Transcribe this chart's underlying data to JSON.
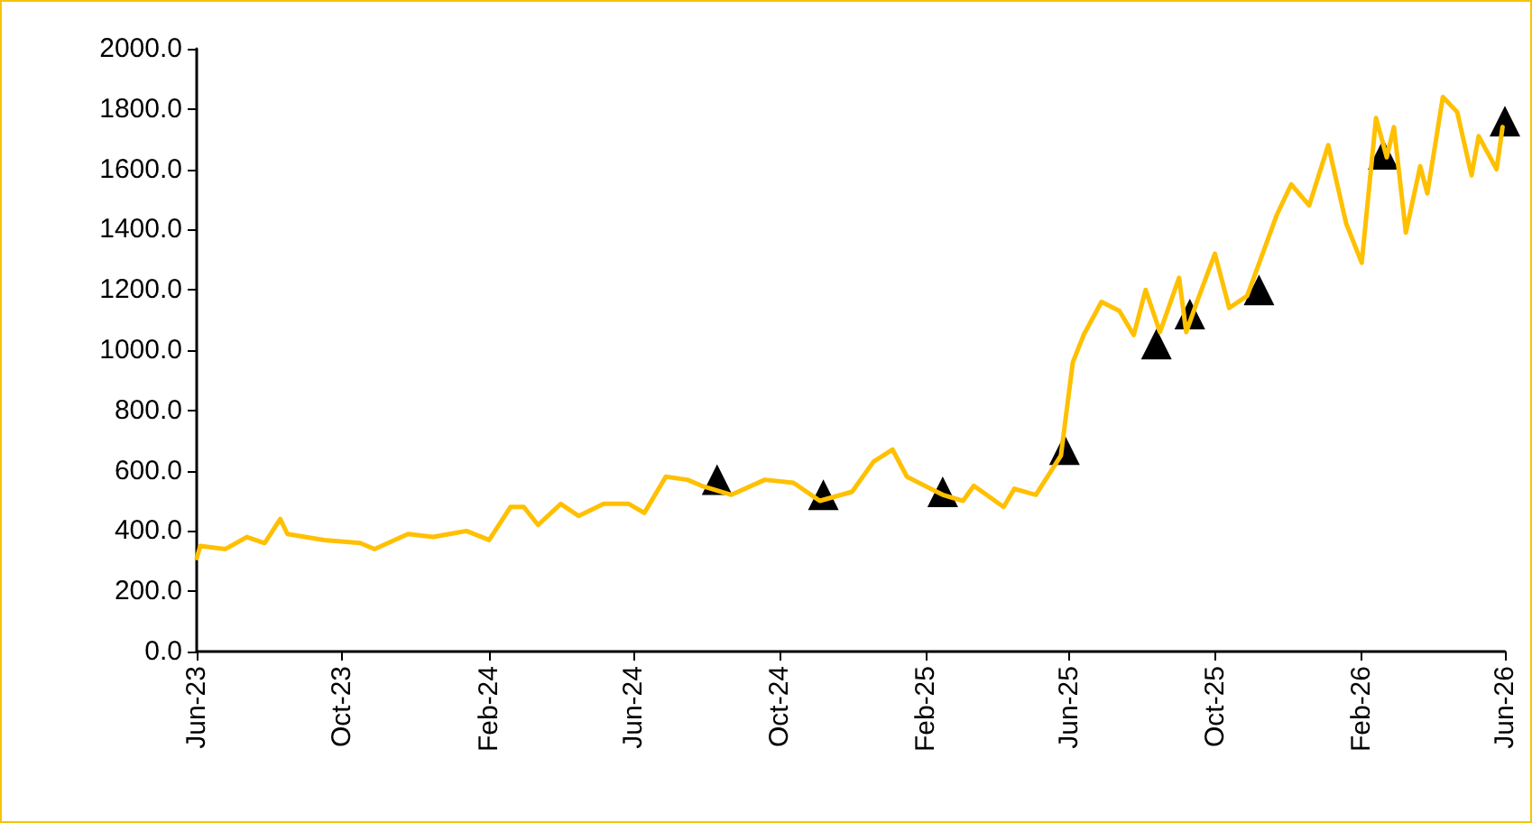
{
  "chart_data": {
    "type": "line",
    "xlim": [
      "2023-06-01",
      "2026-06-01"
    ],
    "xticks": [
      {
        "value": "2023-06-01",
        "label": "Jun-23"
      },
      {
        "value": "2023-10-01",
        "label": "Oct-23"
      },
      {
        "value": "2024-02-01",
        "label": "Feb-24"
      },
      {
        "value": "2024-06-01",
        "label": "Jun-24"
      },
      {
        "value": "2024-10-01",
        "label": "Oct-24"
      },
      {
        "value": "2025-02-01",
        "label": "Feb-25"
      },
      {
        "value": "2025-06-01",
        "label": "Jun-25"
      },
      {
        "value": "2025-10-01",
        "label": "Oct-25"
      },
      {
        "value": "2026-02-01",
        "label": "Feb-26"
      },
      {
        "value": "2026-06-01",
        "label": "Jun-26"
      }
    ],
    "ylim": [
      0,
      2000
    ],
    "yticks": [
      {
        "value": 0,
        "label": "0.0"
      },
      {
        "value": 200,
        "label": "200.0"
      },
      {
        "value": 400,
        "label": "400.0"
      },
      {
        "value": 600,
        "label": "600.0"
      },
      {
        "value": 800,
        "label": "800.0"
      },
      {
        "value": 1000,
        "label": "1000.0"
      },
      {
        "value": 1200,
        "label": "1200.0"
      },
      {
        "value": 1400,
        "label": "1400.0"
      },
      {
        "value": 1600,
        "label": "1600.0"
      },
      {
        "value": 1800,
        "label": "1800.0"
      },
      {
        "value": 2000,
        "label": "2000.0"
      }
    ],
    "grid": false,
    "series": [
      {
        "color": "#ffc000",
        "marker": "none",
        "line_style": "solid",
        "x": [
          "2023-06-01",
          "2023-06-04",
          "2023-06-25",
          "2023-07-13",
          "2023-07-28",
          "2023-08-10",
          "2023-08-16",
          "2023-09-16",
          "2023-10-16",
          "2023-10-28",
          "2023-11-25",
          "2023-12-16",
          "2024-01-13",
          "2024-02-01",
          "2024-02-19",
          "2024-03-01",
          "2024-03-13",
          "2024-04-01",
          "2024-04-16",
          "2024-05-07",
          "2024-05-28",
          "2024-06-10",
          "2024-06-28",
          "2024-07-16",
          "2024-07-28",
          "2024-08-22",
          "2024-09-19",
          "2024-10-13",
          "2024-11-04",
          "2024-12-01",
          "2024-12-19",
          "2025-01-04",
          "2025-01-16",
          "2025-02-15",
          "2025-03-04",
          "2025-03-13",
          "2025-04-07",
          "2025-04-16",
          "2025-05-04",
          "2025-05-25",
          "2025-06-04",
          "2025-06-13",
          "2025-06-28",
          "2025-07-13",
          "2025-07-25",
          "2025-08-04",
          "2025-08-16",
          "2025-09-01",
          "2025-09-07",
          "2025-09-16",
          "2025-10-01",
          "2025-10-13",
          "2025-10-28",
          "2025-11-10",
          "2025-11-22",
          "2025-12-04",
          "2025-12-19",
          "2026-01-04",
          "2026-01-19",
          "2026-02-01",
          "2026-02-13",
          "2026-02-22",
          "2026-02-28",
          "2026-03-10",
          "2026-03-22",
          "2026-03-28",
          "2026-04-10",
          "2026-04-22",
          "2026-05-04",
          "2026-05-10",
          "2026-05-25",
          "2026-05-30"
        ],
        "values": [
          310,
          350,
          340,
          380,
          360,
          440,
          390,
          370,
          360,
          340,
          390,
          380,
          400,
          370,
          480,
          480,
          420,
          490,
          450,
          490,
          490,
          460,
          580,
          570,
          550,
          520,
          570,
          560,
          500,
          530,
          630,
          670,
          580,
          520,
          500,
          550,
          480,
          540,
          520,
          650,
          960,
          1050,
          1160,
          1130,
          1050,
          1200,
          1060,
          1240,
          1060,
          1160,
          1320,
          1140,
          1180,
          1320,
          1450,
          1550,
          1480,
          1680,
          1420,
          1290,
          1770,
          1640,
          1740,
          1390,
          1610,
          1520,
          1840,
          1790,
          1580,
          1710,
          1600,
          1740
        ]
      },
      {
        "type": "scatter",
        "color": "#000000",
        "marker": "triangle",
        "x": [
          "2024-08-10",
          "2024-11-07",
          "2025-02-15",
          "2025-05-28",
          "2025-08-13",
          "2025-09-10",
          "2025-11-07",
          "2026-02-19",
          "2026-06-01"
        ],
        "values": [
          570,
          520,
          530,
          670,
          1020,
          1120,
          1200,
          1650,
          1760
        ]
      }
    ]
  }
}
